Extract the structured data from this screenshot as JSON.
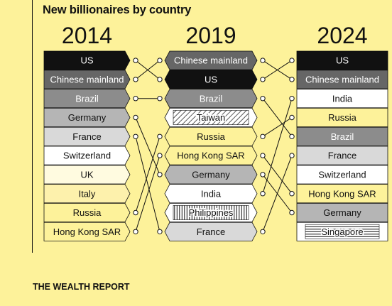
{
  "chart_data": {
    "type": "table",
    "title": "New billionaires by country",
    "columns": [
      {
        "year": "2014",
        "rows": [
          {
            "label": "US",
            "fill": "#111111",
            "text": "#ffffff"
          },
          {
            "label": "Chinese mainland",
            "fill": "#666666",
            "text": "#ffffff"
          },
          {
            "label": "Brazil",
            "fill": "#8c8c8c",
            "text": "#ffffff"
          },
          {
            "label": "Germany",
            "fill": "#b5b5b5",
            "text": "#111111"
          },
          {
            "label": "France",
            "fill": "#d9d9d9",
            "text": "#111111"
          },
          {
            "label": "Switzerland",
            "fill": "#ffffff",
            "text": "#111111"
          },
          {
            "label": "UK",
            "fill": "#fffbe0",
            "text": "#111111"
          },
          {
            "label": "Italy",
            "fill": "#fdf1ac",
            "text": "#111111"
          },
          {
            "label": "Russia",
            "fill": "#fdf29a",
            "text": "#111111"
          },
          {
            "label": "Hong Kong SAR",
            "fill": "#fdf29a",
            "text": "#111111"
          }
        ]
      },
      {
        "year": "2019",
        "rows": [
          {
            "label": "Chinese mainland",
            "fill": "#666666",
            "text": "#ffffff"
          },
          {
            "label": "US",
            "fill": "#111111",
            "text": "#ffffff"
          },
          {
            "label": "Brazil",
            "fill": "#8c8c8c",
            "text": "#ffffff"
          },
          {
            "label": "Taiwan",
            "fill": "#ffffff",
            "text": "#111111",
            "pattern": "diagonal"
          },
          {
            "label": "Russia",
            "fill": "#fdf29a",
            "text": "#111111"
          },
          {
            "label": "Hong Kong SAR",
            "fill": "#fdf29a",
            "text": "#111111"
          },
          {
            "label": "Germany",
            "fill": "#b5b5b5",
            "text": "#111111"
          },
          {
            "label": "India",
            "fill": "#ffffff",
            "text": "#111111"
          },
          {
            "label": "Philippines",
            "fill": "#ffffff",
            "text": "#111111",
            "pattern": "vertical"
          },
          {
            "label": "France",
            "fill": "#d9d9d9",
            "text": "#111111"
          }
        ]
      },
      {
        "year": "2024",
        "rows": [
          {
            "label": "US",
            "fill": "#111111",
            "text": "#ffffff"
          },
          {
            "label": "Chinese mainland",
            "fill": "#666666",
            "text": "#ffffff"
          },
          {
            "label": "India",
            "fill": "#ffffff",
            "text": "#111111"
          },
          {
            "label": "Russia",
            "fill": "#fdf29a",
            "text": "#111111"
          },
          {
            "label": "Brazil",
            "fill": "#8c8c8c",
            "text": "#ffffff"
          },
          {
            "label": "France",
            "fill": "#d9d9d9",
            "text": "#111111"
          },
          {
            "label": "Switzerland",
            "fill": "#ffffff",
            "text": "#111111"
          },
          {
            "label": "Hong Kong SAR",
            "fill": "#fdf29a",
            "text": "#111111"
          },
          {
            "label": "Germany",
            "fill": "#b5b5b5",
            "text": "#111111"
          },
          {
            "label": "Singapore",
            "fill": "#ffffff",
            "text": "#111111",
            "pattern": "horizontal"
          }
        ]
      }
    ],
    "links": [
      {
        "from": [
          0,
          0
        ],
        "to": [
          1,
          1
        ]
      },
      {
        "from": [
          0,
          1
        ],
        "to": [
          1,
          0
        ]
      },
      {
        "from": [
          0,
          2
        ],
        "to": [
          1,
          2
        ]
      },
      {
        "from": [
          0,
          3
        ],
        "to": [
          1,
          6
        ]
      },
      {
        "from": [
          0,
          4
        ],
        "to": [
          1,
          9
        ]
      },
      {
        "from": [
          0,
          8
        ],
        "to": [
          1,
          4
        ]
      },
      {
        "from": [
          0,
          9
        ],
        "to": [
          1,
          5
        ]
      },
      {
        "from": [
          1,
          0
        ],
        "to": [
          2,
          1
        ]
      },
      {
        "from": [
          1,
          1
        ],
        "to": [
          2,
          0
        ]
      },
      {
        "from": [
          1,
          2
        ],
        "to": [
          2,
          4
        ]
      },
      {
        "from": [
          1,
          4
        ],
        "to": [
          2,
          3
        ]
      },
      {
        "from": [
          1,
          5
        ],
        "to": [
          2,
          7
        ]
      },
      {
        "from": [
          1,
          6
        ],
        "to": [
          2,
          8
        ]
      },
      {
        "from": [
          1,
          7
        ],
        "to": [
          2,
          2
        ]
      },
      {
        "from": [
          1,
          9
        ],
        "to": [
          2,
          5
        ]
      }
    ]
  },
  "footer": {
    "credit": "THE WEALTH REPORT"
  }
}
